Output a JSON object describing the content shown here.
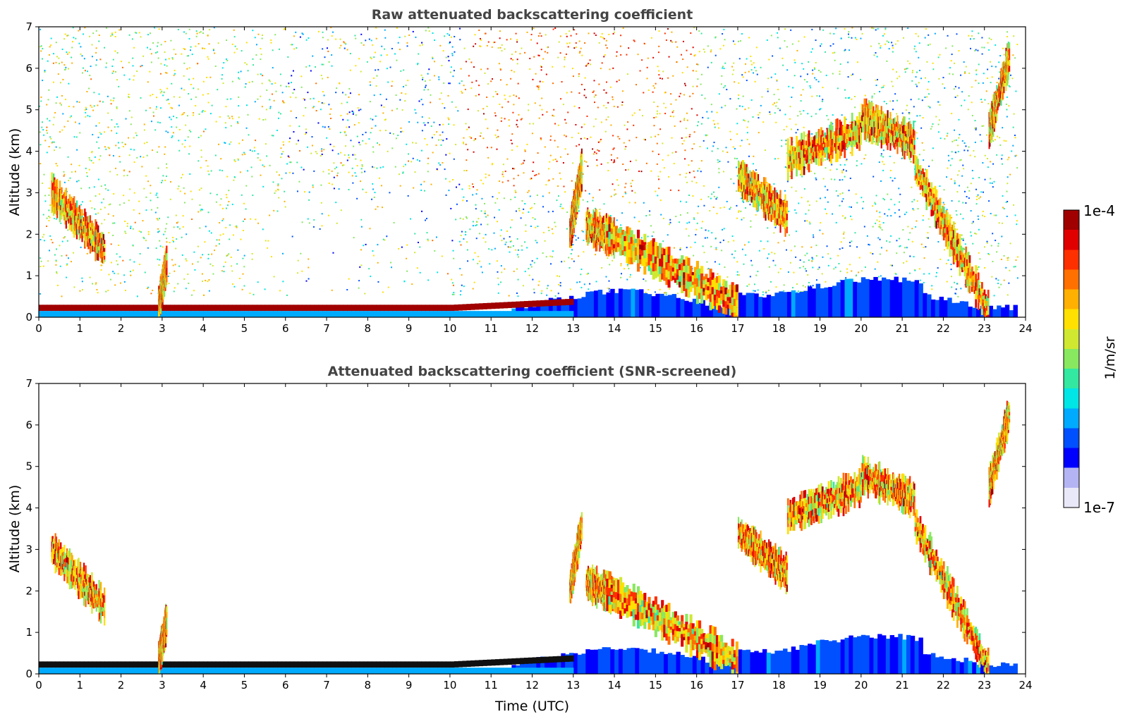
{
  "chart_data": [
    {
      "type": "heatmap",
      "title": "Raw attenuated backscattering coefficient",
      "xlabel": "",
      "ylabel": "Altitude (km)",
      "xlim": [
        0,
        24
      ],
      "ylim": [
        0,
        7
      ],
      "xticks": [
        "0",
        "1",
        "2",
        "3",
        "4",
        "5",
        "6",
        "7",
        "8",
        "9",
        "10",
        "11",
        "12",
        "13",
        "14",
        "15",
        "16",
        "17",
        "18",
        "19",
        "20",
        "21",
        "22",
        "23",
        "24"
      ],
      "yticks": [
        "0",
        "1",
        "2",
        "3",
        "4",
        "5",
        "6",
        "7"
      ],
      "screened": false,
      "features": {
        "boundary_layer_km": [
          0.15,
          0.3
        ],
        "low_cloud_layer_time_utc": [
          0,
          12.9
        ],
        "noise_speckle_top_km": 7,
        "cloud_segments": [
          {
            "time": [
              0.3,
              1.6
            ],
            "alt": [
              3.0,
              1.6
            ]
          },
          {
            "time": [
              2.9,
              3.1
            ],
            "alt": [
              0.3,
              1.3
            ]
          },
          {
            "time": [
              12.9,
              13.2
            ],
            "alt": [
              2.0,
              3.6
            ]
          },
          {
            "time": [
              13.3,
              14.0
            ],
            "alt": [
              2.2,
              1.9
            ]
          },
          {
            "time": [
              13.8,
              17.0
            ],
            "alt": [
              2.0,
              0.3
            ]
          },
          {
            "time": [
              17.0,
              18.2
            ],
            "alt": [
              3.4,
              2.4
            ]
          },
          {
            "time": [
              18.2,
              20.0
            ],
            "alt": [
              3.8,
              4.5
            ]
          },
          {
            "time": [
              20.0,
              21.3
            ],
            "alt": [
              4.8,
              4.2
            ]
          },
          {
            "time": [
              21.3,
              23.1
            ],
            "alt": [
              3.6,
              0.1
            ]
          },
          {
            "time": [
              23.1,
              23.6
            ],
            "alt": [
              4.5,
              6.3
            ]
          }
        ]
      }
    },
    {
      "type": "heatmap",
      "title": "Attenuated backscattering coefficient (SNR-screened)",
      "xlabel": "Time (UTC)",
      "ylabel": "Altitude (km)",
      "xlim": [
        0,
        24
      ],
      "ylim": [
        0,
        7
      ],
      "xticks": [
        "0",
        "1",
        "2",
        "3",
        "4",
        "5",
        "6",
        "7",
        "8",
        "9",
        "10",
        "11",
        "12",
        "13",
        "14",
        "15",
        "16",
        "17",
        "18",
        "19",
        "20",
        "21",
        "22",
        "23",
        "24"
      ],
      "yticks": [
        "0",
        "1",
        "2",
        "3",
        "4",
        "5",
        "6",
        "7"
      ],
      "screened": true
    }
  ],
  "colorbar": {
    "label": "1/m/sr",
    "max_label": "1e-4",
    "min_label": "1e-7",
    "scale": "log",
    "colormap": [
      "#e8e8f8",
      "#b4b4f4",
      "#0000ff",
      "#0050ff",
      "#00aaff",
      "#00e5e5",
      "#33e8a0",
      "#88e860",
      "#d0e830",
      "#ffe000",
      "#ffb000",
      "#ff7000",
      "#ff3000",
      "#e00000",
      "#a00000"
    ]
  }
}
